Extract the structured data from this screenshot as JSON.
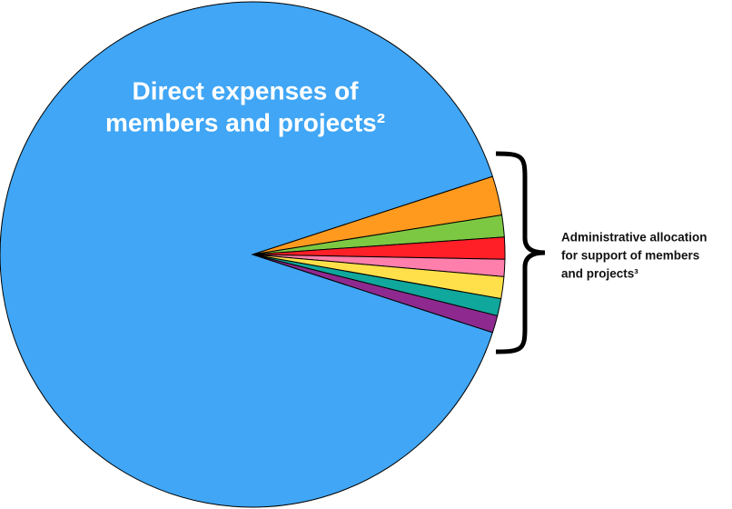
{
  "chart_data": {
    "type": "pie",
    "values": [
      2.5,
      1.4,
      1.4,
      1.1,
      1.4,
      1.1,
      1.1,
      90
    ],
    "colors": [
      "#ff9a1f",
      "#7dc843",
      "#ff1f26",
      "#ff7fac",
      "#ffe04a",
      "#10a89c",
      "#8e2a8f",
      "#40a6f5"
    ],
    "slice_label_lines": [
      "Direct expenses of",
      "members and projects²"
    ],
    "bracket_label_lines": [
      "Administrative allocation",
      "for support of members",
      "and projects³"
    ]
  }
}
